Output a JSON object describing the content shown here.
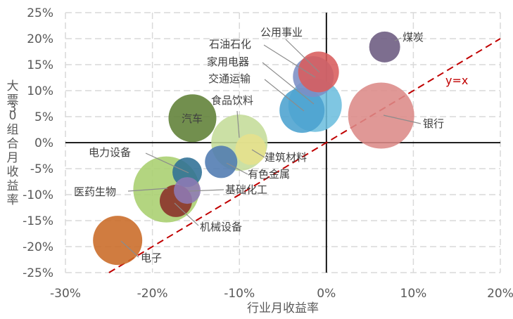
{
  "chart_data": {
    "type": "scatter",
    "xlabel": "行业月收益率",
    "ylabel": "大票30组合月收益率",
    "xlim": [
      -0.3,
      0.2
    ],
    "ylim": [
      -0.25,
      0.25
    ],
    "x_ticks": [
      -0.3,
      -0.2,
      -0.1,
      0.0,
      0.1,
      0.2
    ],
    "x_tick_labels": [
      "-30%",
      "-20%",
      "-10%",
      "0%",
      "10%",
      "20%"
    ],
    "y_ticks": [
      -0.25,
      -0.2,
      -0.15,
      -0.1,
      -0.05,
      0.0,
      0.05,
      0.1,
      0.15,
      0.2,
      0.25
    ],
    "y_tick_labels": [
      "-25%",
      "-20%",
      "-15%",
      "-10%",
      "-5%",
      "0%",
      "5%",
      "10%",
      "15%",
      "20%",
      "25%"
    ],
    "grid": true,
    "gridline_color": "#d9d9d9",
    "reference_line": {
      "label": "y=x",
      "color": "#c00000"
    },
    "points": [
      {
        "name": "医药生物",
        "x": -0.184,
        "y": -0.09,
        "size": 47,
        "color": "#a9cf6e"
      },
      {
        "name": "汽车",
        "x": -0.154,
        "y": 0.047,
        "size": 34,
        "color": "#5f7f36"
      },
      {
        "name": "电子",
        "x": -0.24,
        "y": -0.188,
        "size": 35,
        "color": "#c96a26"
      },
      {
        "name": "食品饮料",
        "x": -0.1,
        "y": 0.0,
        "size": 40,
        "color": "#c4dc98"
      },
      {
        "name": "建筑材料",
        "x": -0.087,
        "y": -0.013,
        "size": 22,
        "color": "#e6e08c"
      },
      {
        "name": "有色金属",
        "x": -0.121,
        "y": -0.037,
        "size": 23,
        "color": "#4f7ab0"
      },
      {
        "name": "电力设备",
        "x": -0.16,
        "y": -0.057,
        "size": 21,
        "color": "#2f6f95"
      },
      {
        "name": "基础化工",
        "x": -0.16,
        "y": -0.092,
        "size": 19,
        "color": "#8e7ab5"
      },
      {
        "name": "机械设备",
        "x": -0.173,
        "y": -0.112,
        "size": 23,
        "color": "#8a2f28"
      },
      {
        "name": "交通运输",
        "x": -0.028,
        "y": 0.062,
        "size": 32,
        "color": "#4ba2cf"
      },
      {
        "name": "家用电器",
        "x": -0.013,
        "y": 0.072,
        "size": 38,
        "color": "#6dbede"
      },
      {
        "name": "石油石化",
        "x": -0.015,
        "y": 0.127,
        "size": 29,
        "color": "#7c8ec5"
      },
      {
        "name": "公用事业",
        "x": -0.009,
        "y": 0.136,
        "size": 29,
        "color": "#d85c5c"
      },
      {
        "name": "煤炭",
        "x": 0.067,
        "y": 0.184,
        "size": 22,
        "color": "#6b5a80"
      },
      {
        "name": "银行",
        "x": 0.063,
        "y": 0.052,
        "size": 47,
        "color": "#dc8a88"
      }
    ]
  }
}
